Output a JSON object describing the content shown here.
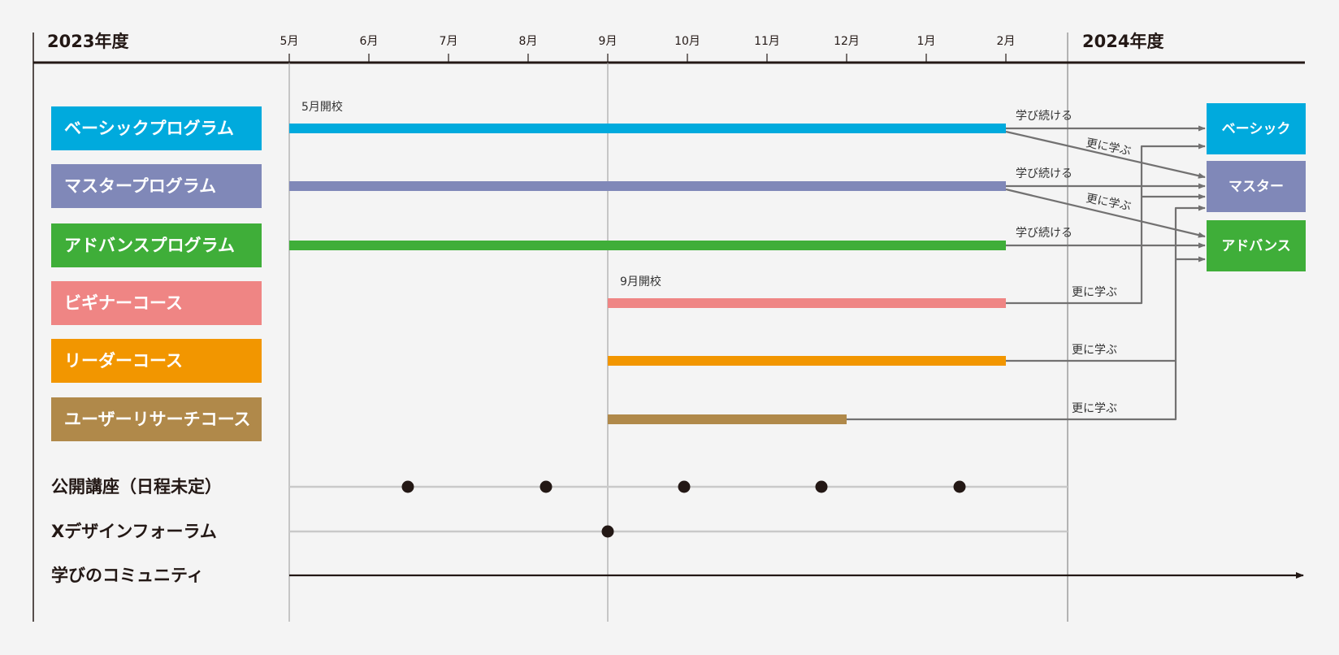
{
  "fiscal_years": {
    "start": "2023年度",
    "end": "2024年度"
  },
  "months": [
    "5月",
    "6月",
    "7月",
    "8月",
    "9月",
    "10月",
    "11月",
    "12月",
    "1月",
    "2月"
  ],
  "colors": {
    "basic": "#00aadd",
    "master": "#8088b8",
    "advance": "#3fae39",
    "beginner": "#ef8584",
    "leader": "#f29600",
    "research": "#b0894a",
    "connector": "#727171",
    "axis": "#231815",
    "gridline": "#999999",
    "event_line": "#c9c9c9"
  },
  "programs": [
    {
      "id": "basic",
      "label": "ベーシックプログラム",
      "start_month": "5月",
      "end_month": "2月",
      "start_note": "5月開校"
    },
    {
      "id": "master",
      "label": "マスタープログラム",
      "start_month": "5月",
      "end_month": "2月"
    },
    {
      "id": "advance",
      "label": "アドバンスプログラム",
      "start_month": "5月",
      "end_month": "2月"
    },
    {
      "id": "beginner",
      "label": "ビギナーコース",
      "start_month": "9月",
      "end_month": "2月",
      "start_note": "9月開校"
    },
    {
      "id": "leader",
      "label": "リーダーコース",
      "start_month": "9月",
      "end_month": "2月"
    },
    {
      "id": "research",
      "label": "ユーザーリサーチコース",
      "start_month": "9月",
      "end_month": "12月"
    }
  ],
  "destinations": [
    {
      "id": "basic",
      "label": "ベーシック"
    },
    {
      "id": "master",
      "label": "マスター"
    },
    {
      "id": "advance",
      "label": "アドバンス"
    }
  ],
  "connector_labels": {
    "continue": "学び続ける",
    "further": "更に学ぶ"
  },
  "events": [
    {
      "id": "public-lectures",
      "label": "公開講座（日程未定）",
      "dots": 5
    },
    {
      "id": "forum",
      "label": "Xデザインフォーラム",
      "dots": 1
    },
    {
      "id": "community",
      "label": "学びのコミュニティ"
    }
  ]
}
